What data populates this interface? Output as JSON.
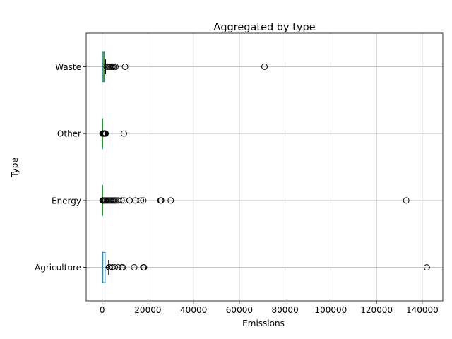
{
  "chart_data": {
    "type": "boxplot",
    "orientation": "horizontal",
    "title": "Aggregated by type",
    "xlabel": "Emissions",
    "ylabel": "Type",
    "xlim": [
      -7000,
      149000
    ],
    "xticks": [
      0,
      20000,
      40000,
      60000,
      80000,
      100000,
      120000,
      140000
    ],
    "xtick_labels": [
      "0",
      "20000",
      "40000",
      "60000",
      "80000",
      "100000",
      "120000",
      "140000"
    ],
    "grid": true,
    "categories": [
      "Agriculture",
      "Energy",
      "Other",
      "Waste"
    ],
    "boxes": [
      {
        "name": "Agriculture",
        "whisker_low": 0,
        "q1": 0,
        "median": 300,
        "q3": 1300,
        "whisker_high": 2800,
        "fliers": [
          3000,
          3300,
          4500,
          5500,
          7000,
          8500,
          9000,
          14000,
          18000,
          18300,
          142000
        ]
      },
      {
        "name": "Energy",
        "whisker_low": 0,
        "q1": 0,
        "median": 10,
        "q3": 50,
        "whisker_high": 120,
        "fliers": [
          150,
          300,
          500,
          800,
          1100,
          1500,
          2000,
          2500,
          3000,
          3500,
          4000,
          4500,
          5000,
          5500,
          6000,
          7000,
          8500,
          9500,
          12000,
          14500,
          17000,
          18000,
          25500,
          25800,
          30000,
          133000
        ]
      },
      {
        "name": "Other",
        "whisker_low": 0,
        "q1": 0,
        "median": 10,
        "q3": 40,
        "whisker_high": 100,
        "fliers": [
          150,
          300,
          500,
          700,
          900,
          1100,
          1300,
          1500,
          9500
        ]
      },
      {
        "name": "Waste",
        "whisker_low": 0,
        "q1": 100,
        "median": 500,
        "q3": 900,
        "whisker_high": 1500,
        "fliers": [
          2000,
          2500,
          3000,
          3500,
          4000,
          4500,
          5000,
          5800,
          10000,
          71000
        ]
      }
    ]
  }
}
